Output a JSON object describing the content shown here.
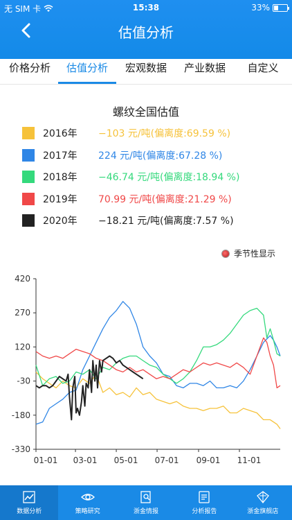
{
  "status": {
    "carrier": "无 SIM 卡",
    "time": "15:38",
    "battery": "33%",
    "battery_level": 0.33
  },
  "header": {
    "title": "估值分析"
  },
  "tabs": [
    {
      "label": "价格分析",
      "active": false
    },
    {
      "label": "估值分析",
      "active": true
    },
    {
      "label": "宏观数据",
      "active": false
    },
    {
      "label": "产业数据",
      "active": false
    },
    {
      "label": "自定义",
      "active": false
    }
  ],
  "chart": {
    "title": "螺纹全国估值",
    "seasonal_label": "季节性显示"
  },
  "legend": [
    {
      "year": "2016年",
      "text": "−103 元/吨(偏离度:69.59 %)",
      "color": "#f6c23a"
    },
    {
      "year": "2017年",
      "text": "224 元/吨(偏离度:67.28 %)",
      "color": "#2f86e6"
    },
    {
      "year": "2018年",
      "text": "−46.74 元/吨(偏离度:18.94 %)",
      "color": "#34d97c"
    },
    {
      "year": "2019年",
      "text": "70.99 元/吨(偏离度:21.29 %)",
      "color": "#f04848"
    },
    {
      "year": "2020年",
      "text": "−18.21 元/吨(偏离度:7.57 %)",
      "color": "#222222"
    }
  ],
  "chart_data": {
    "type": "line",
    "ylim": [
      -330,
      420
    ],
    "yticks": [
      "420",
      "270",
      "120",
      "-30",
      "-180",
      "-330"
    ],
    "xticks": [
      "01-01",
      "03-01",
      "05-01",
      "07-01",
      "09-01",
      "11-01"
    ],
    "x_domain_days": [
      0,
      365
    ],
    "xtick_days": [
      0,
      59,
      120,
      181,
      243,
      304
    ],
    "series": [
      {
        "name": "2016年",
        "color": "#f6c23a",
        "x": [
          0,
          10,
          20,
          30,
          40,
          50,
          60,
          70,
          80,
          90,
          100,
          110,
          120,
          130,
          140,
          150,
          160,
          170,
          180,
          190,
          200,
          210,
          220,
          230,
          240,
          250,
          260,
          270,
          280,
          290,
          300,
          310,
          320,
          330,
          340,
          350,
          360,
          365
        ],
        "y": [
          10,
          -20,
          -40,
          -60,
          -30,
          -50,
          -60,
          -20,
          -40,
          0,
          -80,
          -60,
          -90,
          -80,
          -100,
          -60,
          -90,
          -80,
          -110,
          -120,
          -130,
          -120,
          -140,
          -150,
          -150,
          -160,
          -150,
          -150,
          -140,
          -170,
          -170,
          -150,
          -160,
          -170,
          -200,
          -200,
          -220,
          -240
        ]
      },
      {
        "name": "2017年",
        "color": "#2f86e6",
        "x": [
          0,
          10,
          20,
          30,
          40,
          50,
          60,
          70,
          80,
          90,
          100,
          110,
          120,
          130,
          140,
          150,
          160,
          170,
          180,
          190,
          200,
          210,
          220,
          230,
          240,
          250,
          260,
          270,
          280,
          290,
          300,
          310,
          320,
          330,
          340,
          350,
          355,
          360,
          365
        ],
        "y": [
          -220,
          -210,
          -150,
          -130,
          -110,
          -80,
          -70,
          20,
          80,
          140,
          200,
          250,
          280,
          320,
          290,
          220,
          120,
          80,
          50,
          0,
          -10,
          -50,
          -60,
          -40,
          -40,
          -50,
          -30,
          -60,
          -60,
          -50,
          -60,
          -30,
          20,
          80,
          140,
          170,
          150,
          120,
          80
        ]
      },
      {
        "name": "2018年",
        "color": "#34d97c",
        "x": [
          0,
          10,
          20,
          30,
          40,
          50,
          60,
          70,
          80,
          90,
          100,
          110,
          120,
          130,
          140,
          150,
          160,
          170,
          180,
          190,
          200,
          210,
          220,
          230,
          240,
          250,
          260,
          270,
          280,
          290,
          300,
          310,
          320,
          330,
          340,
          345,
          350,
          355,
          360,
          365
        ],
        "y": [
          40,
          -50,
          -20,
          -10,
          -40,
          -30,
          10,
          0,
          20,
          -20,
          30,
          20,
          50,
          70,
          80,
          80,
          60,
          40,
          30,
          0,
          -20,
          -40,
          -20,
          10,
          60,
          120,
          120,
          130,
          150,
          180,
          220,
          260,
          280,
          290,
          260,
          160,
          200,
          150,
          90,
          80
        ]
      },
      {
        "name": "2019年",
        "color": "#f04848",
        "x": [
          0,
          10,
          20,
          30,
          40,
          50,
          60,
          70,
          80,
          90,
          100,
          110,
          120,
          130,
          140,
          150,
          160,
          170,
          180,
          190,
          200,
          210,
          220,
          230,
          240,
          250,
          260,
          270,
          280,
          290,
          300,
          310,
          320,
          330,
          340,
          345,
          350,
          355,
          360,
          365
        ],
        "y": [
          100,
          80,
          70,
          80,
          70,
          90,
          110,
          100,
          90,
          70,
          60,
          40,
          20,
          10,
          30,
          10,
          20,
          0,
          -20,
          -10,
          -20,
          0,
          20,
          10,
          30,
          50,
          40,
          50,
          40,
          30,
          50,
          30,
          0,
          80,
          160,
          140,
          80,
          40,
          -60,
          -50
        ]
      },
      {
        "name": "2020年",
        "color": "#222222",
        "x": [
          0,
          5,
          10,
          15,
          20,
          25,
          30,
          35,
          40,
          45,
          48,
          50,
          53,
          55,
          58,
          60,
          62,
          65,
          68,
          70,
          73,
          75,
          78,
          80,
          83,
          85,
          88,
          90,
          92,
          95,
          98,
          100,
          105,
          110,
          115,
          120,
          125,
          130,
          135,
          140,
          145,
          150,
          155,
          160
        ],
        "y": [
          -50,
          -60,
          -50,
          -50,
          -60,
          -50,
          -30,
          -10,
          -20,
          -30,
          0,
          -100,
          -200,
          -60,
          -10,
          -170,
          -150,
          -180,
          -120,
          -50,
          -140,
          -40,
          -60,
          20,
          -80,
          60,
          -30,
          40,
          -60,
          60,
          10,
          60,
          70,
          80,
          70,
          50,
          60,
          40,
          30,
          20,
          10,
          0,
          -10,
          -20
        ]
      }
    ]
  },
  "nav": [
    {
      "label": "数据分析",
      "icon": "chart-icon",
      "active": true
    },
    {
      "label": "策略研究",
      "icon": "eye-icon",
      "active": false
    },
    {
      "label": "浙金情报",
      "icon": "search-doc-icon",
      "active": false
    },
    {
      "label": "分析报告",
      "icon": "report-icon",
      "active": false
    },
    {
      "label": "浙金旗舰店",
      "icon": "store-icon",
      "active": false
    }
  ]
}
